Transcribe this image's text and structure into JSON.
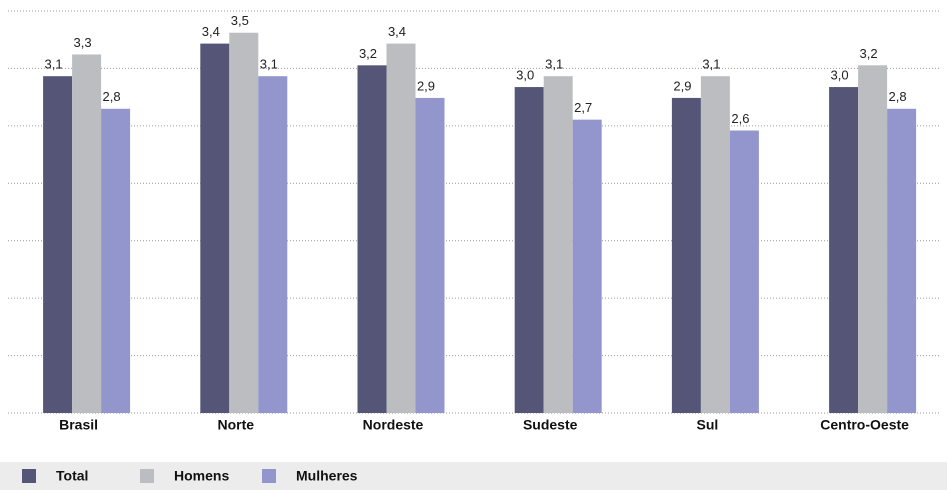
{
  "chart_data": {
    "type": "bar",
    "categories": [
      "Brasil",
      "Norte",
      "Nordeste",
      "Sudeste",
      "Sul",
      "Centro-Oeste"
    ],
    "series": [
      {
        "name": "Total",
        "color": "#555677",
        "values": [
          3.1,
          3.4,
          3.2,
          3.0,
          2.9,
          3.0
        ],
        "value_labels": [
          "3,1",
          "3,4",
          "3,2",
          "3,0",
          "2,9",
          "3,0"
        ]
      },
      {
        "name": "Homens",
        "color": "#bcbdc0",
        "values": [
          3.3,
          3.5,
          3.4,
          3.1,
          3.1,
          3.2
        ],
        "value_labels": [
          "3,3",
          "3,5",
          "3,4",
          "3,1",
          "3,1",
          "3,2"
        ]
      },
      {
        "name": "Mulheres",
        "color": "#9396cc",
        "values": [
          2.8,
          3.1,
          2.9,
          2.7,
          2.6,
          2.8
        ],
        "value_labels": [
          "2,8",
          "3,1",
          "2,9",
          "2,7",
          "2,6",
          "2,8"
        ]
      }
    ],
    "ylim": [
      0,
      3.7
    ],
    "grid": true,
    "grid_divisions": 7,
    "legend": "bottom"
  }
}
